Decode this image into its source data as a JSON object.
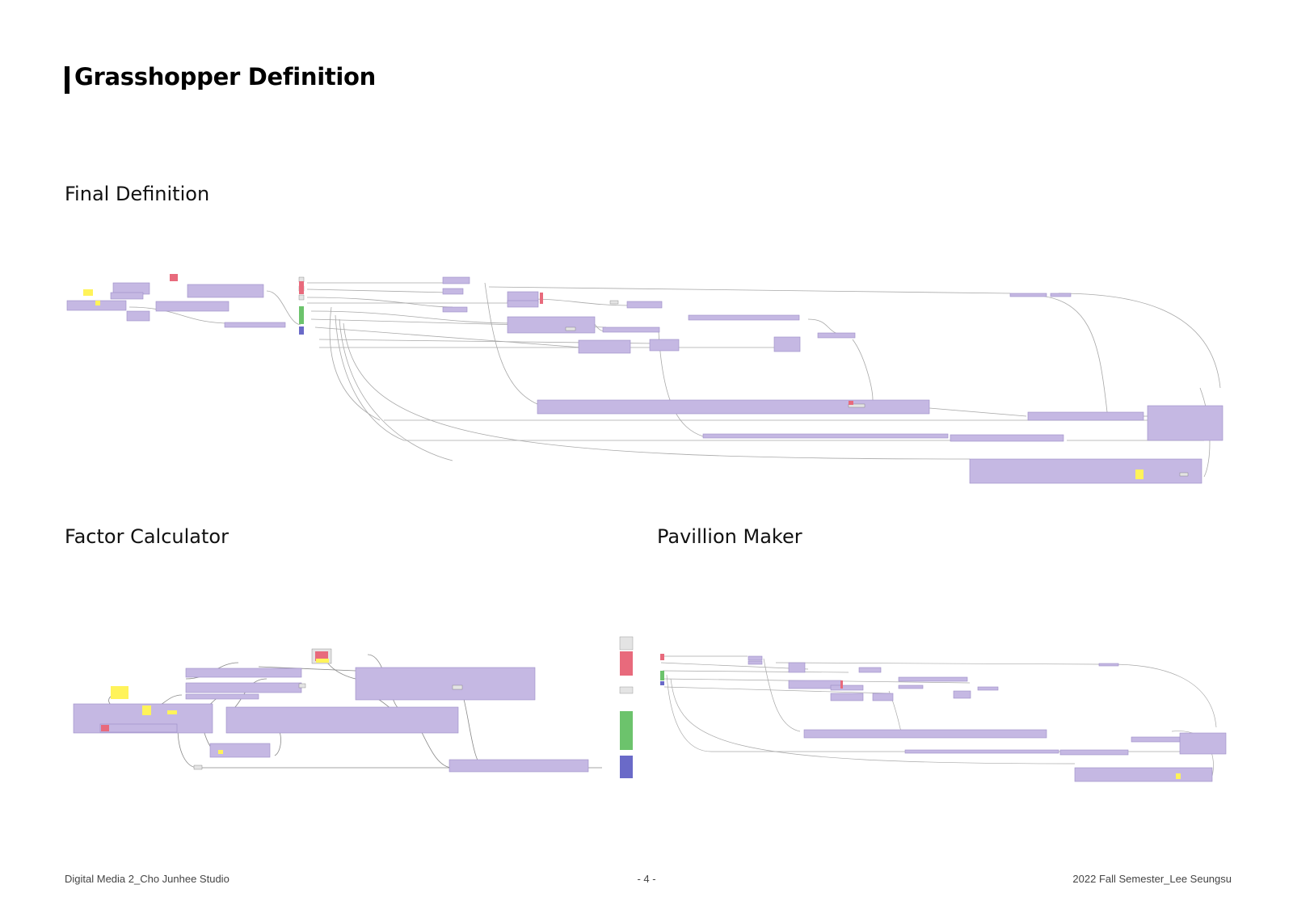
{
  "page": {
    "title": "Grasshopper Definition",
    "accent_color": "#000000"
  },
  "sections": {
    "final": "Final Definition",
    "factor": "Factor Calculator",
    "pavillion": "Pavillion Maker"
  },
  "diagram_style": {
    "group_fill": "#c5b8e3",
    "group_stroke": "#9c8cc6",
    "wire_color": "#a8a8a8",
    "node_fill": "#e4e4e4",
    "panel_yellow": "#fff35a",
    "param_red": "#e86a7c",
    "param_green": "#6cc36c",
    "param_blue": "#6a6ac8"
  },
  "footer": {
    "left": "Digital Media 2_Cho Junhee Studio",
    "center": "- 4 -",
    "right": "2022 Fall Semester_Lee Seungsu"
  }
}
